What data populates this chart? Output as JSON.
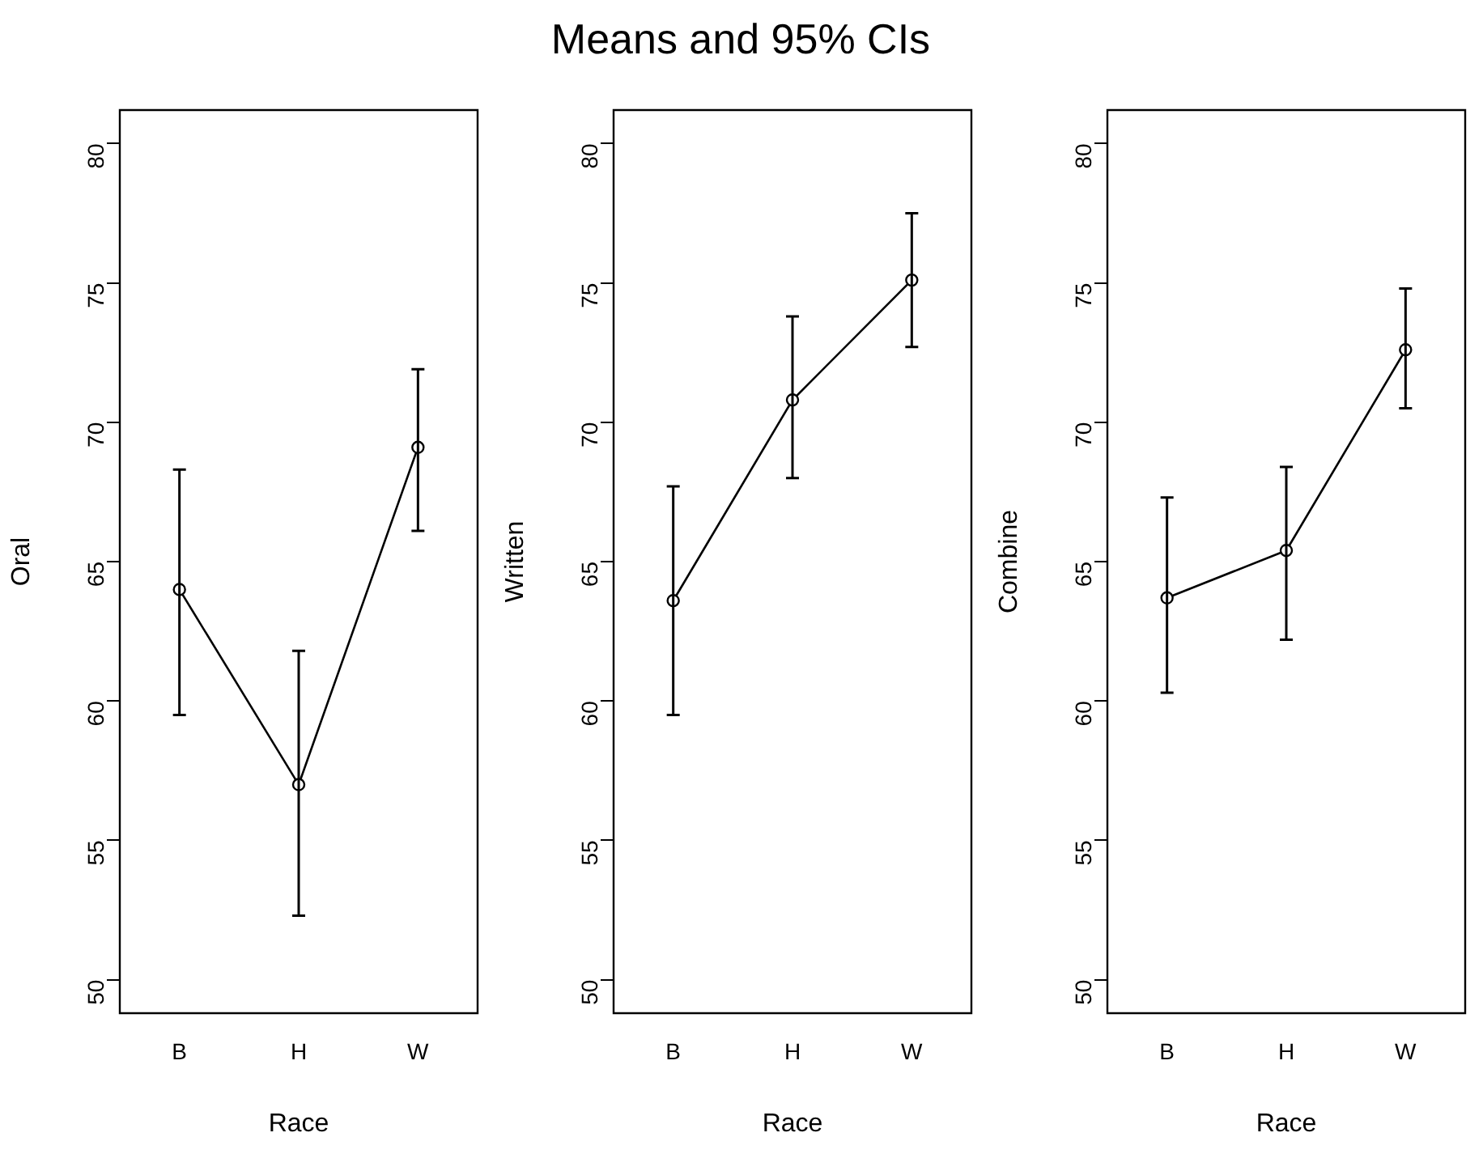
{
  "chart_data": [
    {
      "type": "line",
      "xlabel": "Race",
      "ylabel": "Oral",
      "categories": [
        "B",
        "H",
        "W"
      ],
      "values": [
        64.0,
        57.0,
        69.1
      ],
      "errors": [
        [
          59.5,
          68.3
        ],
        [
          52.3,
          61.8
        ],
        [
          66.1,
          71.9
        ]
      ],
      "color": "#000000",
      "ylim": [
        48.8,
        81.2
      ],
      "yticks": [
        50,
        55,
        60,
        65,
        70,
        75,
        80
      ],
      "grid": false,
      "legend": false,
      "marker": "circle",
      "line_style": "solid"
    },
    {
      "type": "line",
      "title": "Means and 95% CIs",
      "xlabel": "Race",
      "ylabel": "Written",
      "categories": [
        "B",
        "H",
        "W"
      ],
      "values": [
        63.6,
        70.8,
        75.1
      ],
      "errors": [
        [
          59.5,
          67.7
        ],
        [
          68.0,
          73.8
        ],
        [
          72.7,
          77.5
        ]
      ],
      "color": "#000000",
      "ylim": [
        48.8,
        81.2
      ],
      "yticks": [
        50,
        55,
        60,
        65,
        70,
        75,
        80
      ],
      "grid": false,
      "legend": false,
      "marker": "circle",
      "line_style": "solid"
    },
    {
      "type": "line",
      "xlabel": "Race",
      "ylabel": "Combine",
      "categories": [
        "B",
        "H",
        "W"
      ],
      "values": [
        63.7,
        65.4,
        72.6
      ],
      "errors": [
        [
          60.3,
          67.3
        ],
        [
          62.2,
          68.4
        ],
        [
          70.5,
          74.8
        ]
      ],
      "color": "#000000",
      "ylim": [
        48.8,
        81.2
      ],
      "yticks": [
        50,
        55,
        60,
        65,
        70,
        75,
        80
      ],
      "grid": false,
      "legend": false,
      "marker": "circle",
      "line_style": "solid"
    }
  ]
}
